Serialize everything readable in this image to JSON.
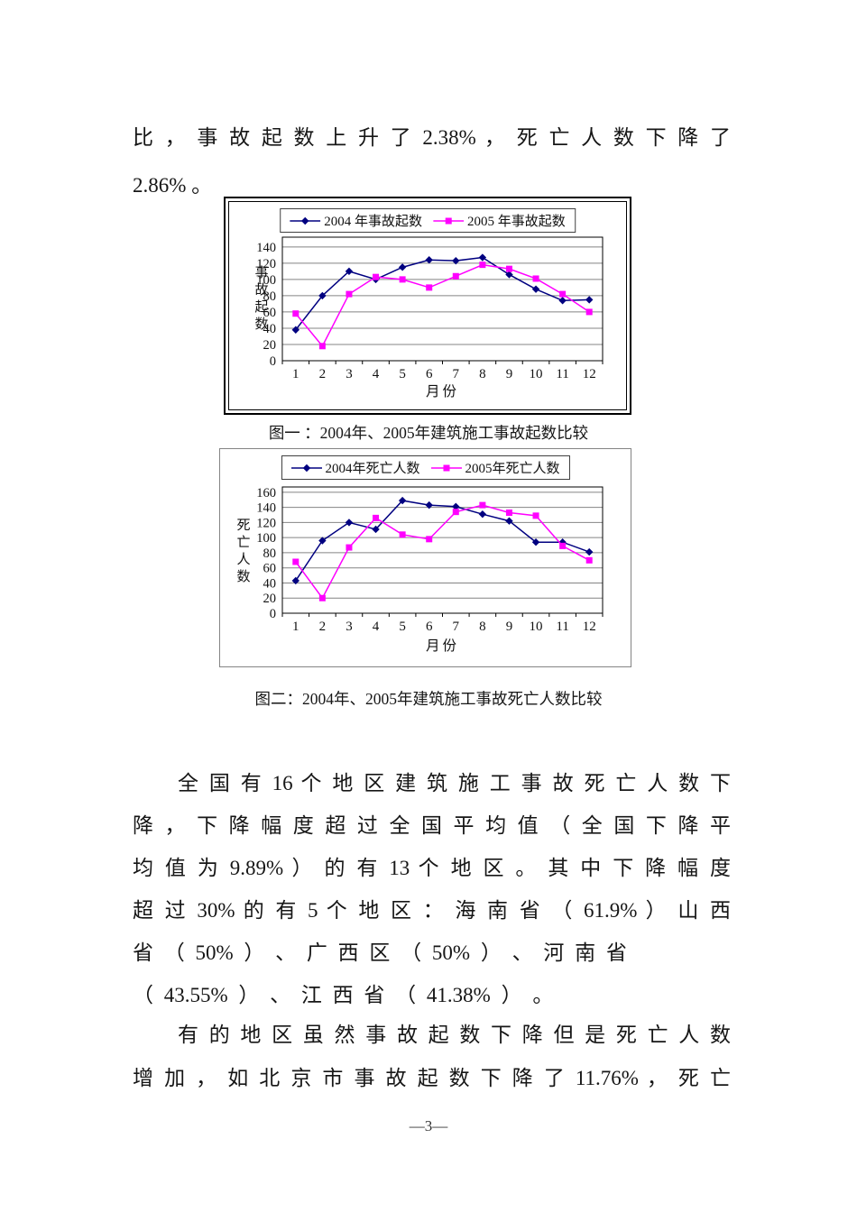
{
  "page": {
    "number_label": "—3—"
  },
  "body": {
    "para1": [
      "比 ， 事 故 起 数 上 升 了 2.38% ， 死 亡 人 数 下 降 了",
      "2.86% 。"
    ],
    "para2": [
      "全 国 有 16 个 地 区 建 筑 施 工 事 故 死 亡 人 数 下",
      "降 ， 下 降 幅 度 超 过 全 国 平 均 值 （ 全 国 下 降 平",
      "均 值 为 9.89% ） 的 有 13 个 地 区 。 其 中 下 降 幅 度",
      "超 过 30% 的 有 5 个 地 区 ： 海 南 省 （ 61.9% ） 山 西",
      "省 （ 50% ） 、 广 西 区 （ 50% ） 、 河 南 省",
      "（ 43.55% ） 、 江 西 省 （ 41.38% ） 。"
    ],
    "para3": [
      "有 的 地 区 虽 然 事 故 起 数 下 降 但 是 死 亡 人 数",
      "增 加 ， 如 北 京 市 事 故 起 数 下 降 了 11.76% ， 死 亡"
    ]
  },
  "captions": [
    "图一 ：2004年、2005年建筑施工事故起数比较",
    "图二：2004年、2005年建筑施工事故死亡人数比较"
  ],
  "chart_data": [
    {
      "type": "line",
      "title": "",
      "xlabel": "月份",
      "ylabel": "事故起数",
      "categories": [
        "1",
        "2",
        "3",
        "4",
        "5",
        "6",
        "7",
        "8",
        "9",
        "10",
        "11",
        "12"
      ],
      "ylim": [
        0,
        140
      ],
      "ystep": 20,
      "grid": true,
      "legend_position": "top",
      "series": [
        {
          "name": "2004 年事故起数",
          "color": "#000080",
          "marker": "diamond",
          "values": [
            38,
            80,
            110,
            100,
            115,
            124,
            123,
            127,
            106,
            88,
            74,
            75
          ]
        },
        {
          "name": "2005 年事故起数",
          "color": "#FF00FF",
          "marker": "square",
          "values": [
            58,
            18,
            82,
            103,
            100,
            90,
            104,
            118,
            113,
            101,
            82,
            60
          ]
        }
      ]
    },
    {
      "type": "line",
      "title": "",
      "xlabel": "月份",
      "ylabel": "死亡人数",
      "categories": [
        "1",
        "2",
        "3",
        "4",
        "5",
        "6",
        "7",
        "8",
        "9",
        "10",
        "11",
        "12"
      ],
      "ylim": [
        0,
        160
      ],
      "ystep": 20,
      "grid": true,
      "legend_position": "top",
      "series": [
        {
          "name": "2004年死亡人数",
          "color": "#000080",
          "marker": "diamond",
          "values": [
            43,
            96,
            120,
            111,
            149,
            143,
            141,
            131,
            122,
            94,
            94,
            81
          ]
        },
        {
          "name": "2005年死亡人数",
          "color": "#FF00FF",
          "marker": "square",
          "values": [
            68,
            20,
            87,
            126,
            104,
            98,
            134,
            143,
            133,
            129,
            89,
            70
          ]
        }
      ]
    }
  ],
  "colors": {
    "series_2004": "#000080",
    "series_2005": "#FF00FF",
    "gridline": "#848484",
    "axis": "#000000"
  }
}
